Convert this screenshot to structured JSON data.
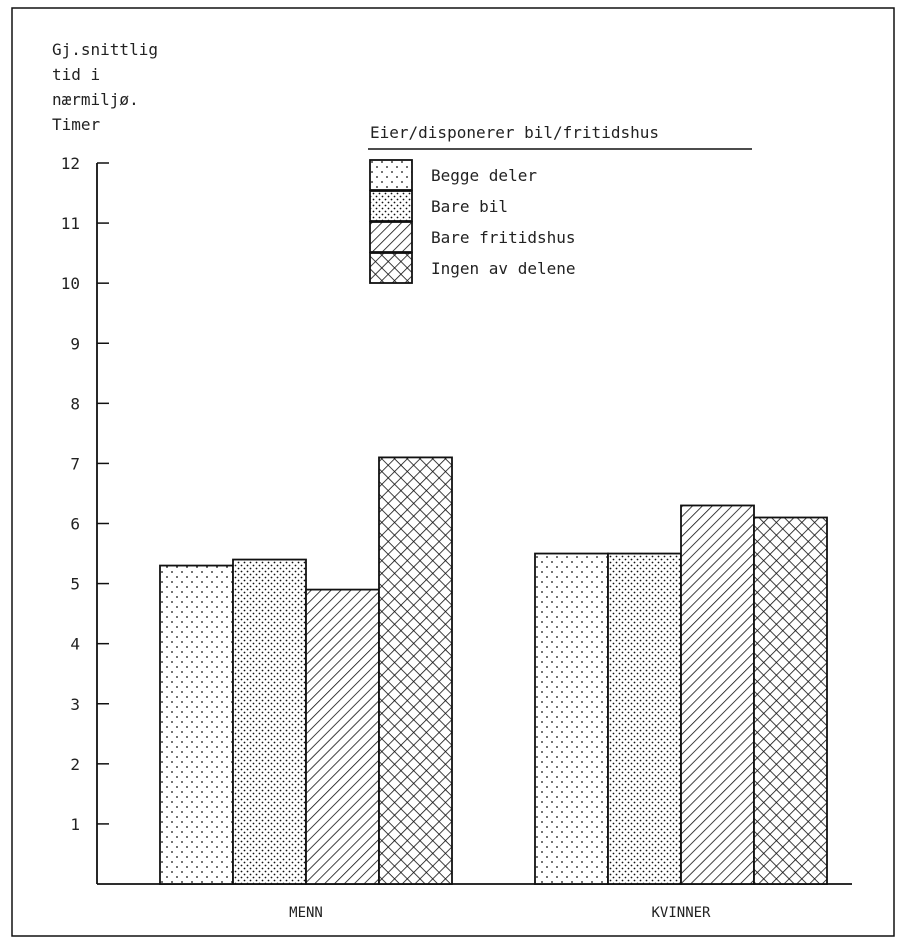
{
  "chart_data": {
    "type": "bar",
    "ylabel_lines": [
      "Gj.snittlig",
      "tid i",
      "nærmiljø.",
      "Timer"
    ],
    "categories": [
      "MENN",
      "KVINNER"
    ],
    "legend_title": "Eier/disponerer bil/fritidshus",
    "series": [
      {
        "name": "Begge deler",
        "pattern": "sparse-dots",
        "values": [
          5.3,
          5.5
        ]
      },
      {
        "name": "Bare bil",
        "pattern": "dense-dots",
        "values": [
          5.4,
          5.5
        ]
      },
      {
        "name": "Bare fritidshus",
        "pattern": "diagonal-hatch",
        "values": [
          4.9,
          6.3
        ]
      },
      {
        "name": "Ingen av delene",
        "pattern": "crosshatch",
        "values": [
          7.1,
          6.1
        ]
      }
    ],
    "ylim": [
      0,
      12
    ],
    "yticks": [
      1,
      2,
      3,
      4,
      5,
      6,
      7,
      8,
      9,
      10,
      11,
      12
    ],
    "grid": false,
    "legend_position": "top-center",
    "colors": {
      "ink": "#111111",
      "background": "#ffffff"
    }
  }
}
